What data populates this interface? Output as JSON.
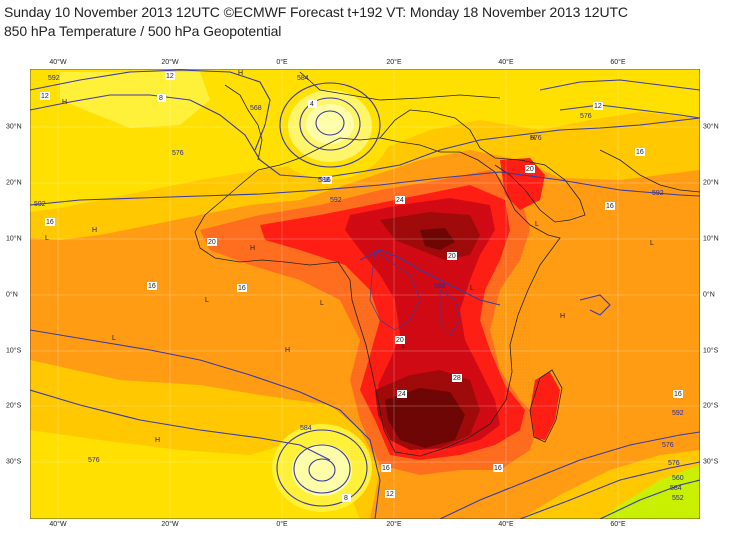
{
  "header": {
    "title_line1": "Sunday 10 November 2013 12UTC ©ECMWF Forecast t+192 VT: Monday 18 November 2013 12UTC",
    "title_line2": "850 hPa Temperature / 500 hPa Geopotential"
  },
  "axes": {
    "longitude_labels": [
      "40°W",
      "20°W",
      "0°E",
      "20°E",
      "40°E",
      "60°E"
    ],
    "latitude_labels": [
      "30°N",
      "20°N",
      "10°N",
      "0°N",
      "10°S",
      "20°S",
      "30°S"
    ]
  },
  "map": {
    "variables": [
      "850 hPa Temperature",
      "500 hPa Geopotential"
    ],
    "temperature_labels": [
      "12",
      "16",
      "20",
      "24",
      "28",
      "8",
      "4"
    ],
    "geopotential_labels": [
      "592",
      "588",
      "584",
      "576",
      "568",
      "560",
      "552"
    ],
    "pressure_marks": [
      "H",
      "L"
    ],
    "colors": {
      "cold": "#fefea8",
      "cool": "#ffe000",
      "mild": "#ffc800",
      "warm": "#ff9c14",
      "hot": "#ff6e1e",
      "hotter": "#ff1e14",
      "very_hot": "#d20a14",
      "extreme": "#a00a0a",
      "max": "#6e0505",
      "green": "#c8f000",
      "contour": "#3a3aa0",
      "coast": "#222222"
    }
  }
}
